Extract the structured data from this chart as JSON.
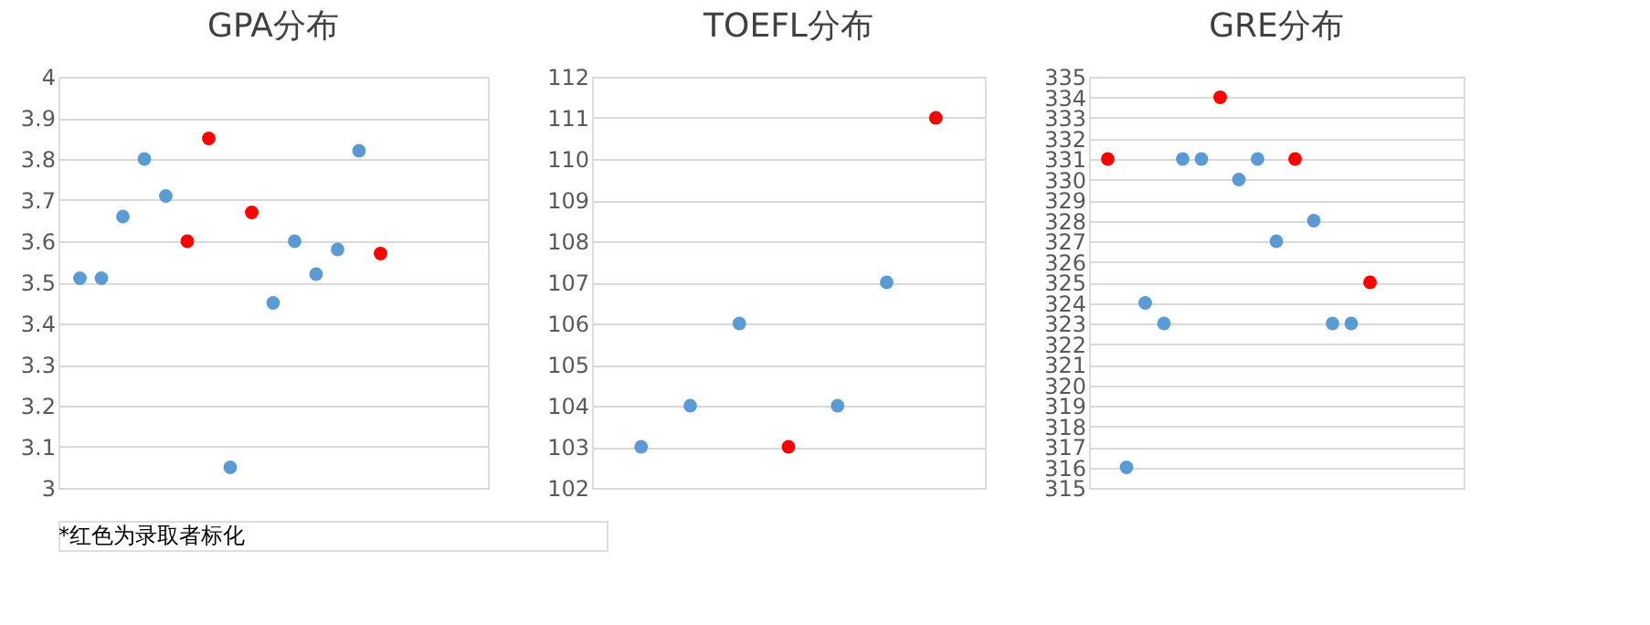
{
  "chart_data": [
    {
      "type": "scatter",
      "title": "GPA分布",
      "categories": [
        null,
        null,
        null,
        null,
        null,
        null,
        null,
        null,
        null,
        null,
        null,
        null,
        null,
        null,
        null,
        null,
        null,
        null,
        null
      ],
      "ylim": [
        3,
        4
      ],
      "yticks": [
        3,
        3.1,
        3.2,
        3.3,
        3.4,
        3.5,
        3.6,
        3.7,
        3.8,
        3.9,
        4
      ],
      "grid": "y",
      "tick_labels": "y",
      "marker": "circle",
      "annotations": [
        "*红色为录取者标化"
      ],
      "series": [
        {
          "color": "#5b9bd5",
          "values": [
            3.51,
            3.51,
            3.66,
            3.8,
            3.71,
            null,
            null,
            3.05,
            null,
            3.45,
            3.6,
            3.52,
            3.58,
            3.82,
            null,
            null,
            null,
            null,
            null
          ]
        },
        {
          "color": "#ff0000",
          "values": [
            null,
            null,
            null,
            null,
            null,
            3.6,
            3.85,
            null,
            3.67,
            null,
            null,
            null,
            null,
            null,
            3.57,
            null,
            null,
            null,
            null
          ]
        }
      ]
    },
    {
      "type": "scatter",
      "title": "TOEFL分布",
      "categories": [
        null,
        null,
        null,
        null,
        null,
        null,
        null
      ],
      "ylim": [
        102,
        112
      ],
      "yticks": [
        102,
        103,
        104,
        105,
        106,
        107,
        108,
        109,
        110,
        111,
        112
      ],
      "grid": "y",
      "tick_labels": "y",
      "marker": "circle",
      "series": [
        {
          "color": "#5b9bd5",
          "values": [
            103,
            104,
            106,
            null,
            104,
            107,
            null
          ]
        },
        {
          "color": "#ff0000",
          "values": [
            null,
            null,
            null,
            103,
            null,
            null,
            111
          ]
        }
      ]
    },
    {
      "type": "scatter",
      "title": "GRE分布",
      "categories": [
        null,
        null,
        null,
        null,
        null,
        null,
        null,
        null,
        null,
        null,
        null,
        null,
        null,
        null,
        null,
        null,
        null,
        null,
        null
      ],
      "ylim": [
        315,
        335
      ],
      "yticks": [
        315,
        316,
        317,
        318,
        319,
        320,
        321,
        322,
        323,
        324,
        325,
        326,
        327,
        328,
        329,
        330,
        331,
        332,
        333,
        334,
        335
      ],
      "grid": "y",
      "tick_labels": "y",
      "marker": "circle",
      "series": [
        {
          "color": "#5b9bd5",
          "values": [
            null,
            316,
            324,
            323,
            331,
            331,
            null,
            330,
            331,
            327,
            null,
            328,
            323,
            323,
            null,
            null,
            null,
            null,
            null
          ]
        },
        {
          "color": "#ff0000",
          "values": [
            331,
            null,
            null,
            null,
            null,
            null,
            334,
            null,
            null,
            null,
            331,
            null,
            null,
            null,
            325,
            null,
            null,
            null,
            null
          ]
        }
      ]
    }
  ]
}
